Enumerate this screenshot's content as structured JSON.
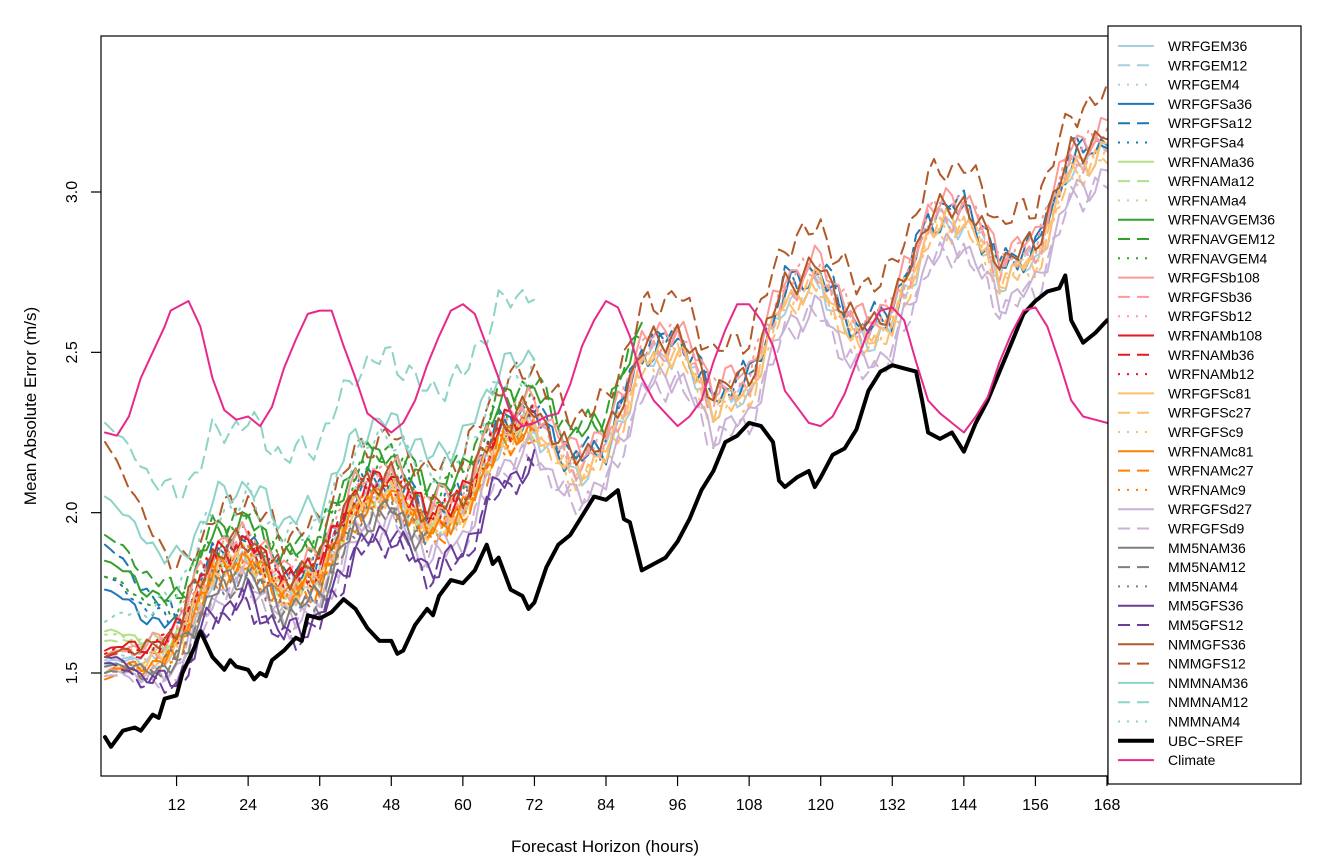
{
  "chart_data": {
    "type": "line",
    "title": "",
    "xlabel": "Forecast Horizon (hours)",
    "ylabel": "Mean Absolute Error (m/s)",
    "xlim": [
      0,
      168
    ],
    "ylim": [
      1.2,
      3.45
    ],
    "xticks": [
      12,
      24,
      36,
      48,
      60,
      72,
      84,
      96,
      108,
      120,
      132,
      144,
      156,
      168
    ],
    "yticks": [
      1.5,
      2.0,
      2.5,
      3.0
    ],
    "ytick_labels": [
      "1.5",
      "2.0",
      "2.5",
      "3.0"
    ],
    "legend_position": "right, outside plot",
    "anchor_x": [
      0,
      6,
      12,
      15,
      18,
      24,
      30,
      36,
      42,
      48,
      54,
      60,
      66,
      72,
      78,
      84,
      90,
      96,
      102,
      108,
      114,
      120,
      126,
      132,
      138,
      144,
      150,
      156,
      162,
      168
    ],
    "series": [
      {
        "name": "WRFGEM36",
        "color": "#a6cee3",
        "dash": "solid",
        "width": 2,
        "start": 1.53,
        "end": 168,
        "offset": 0.02
      },
      {
        "name": "WRFGEM12",
        "color": "#a6cee3",
        "dash": "dashed",
        "width": 2,
        "start": 1.52,
        "end": 168,
        "offset": 0.05
      },
      {
        "name": "WRFGEM4",
        "color": "#a6cee3",
        "dash": "dotted",
        "width": 2,
        "start": 1.54,
        "end": 72,
        "offset": 0.03
      },
      {
        "name": "WRFGFSa36",
        "color": "#1f78b4",
        "dash": "solid",
        "width": 2,
        "start": 1.76,
        "end": 168,
        "offset": 0.06
      },
      {
        "name": "WRFGFSa12",
        "color": "#1f78b4",
        "dash": "dashed",
        "width": 2,
        "start": 1.9,
        "end": 168,
        "offset": 0.08
      },
      {
        "name": "WRFGFSa4",
        "color": "#1f78b4",
        "dash": "dotted",
        "width": 2,
        "start": 1.8,
        "end": 72,
        "offset": 0.07
      },
      {
        "name": "WRFNAMa36",
        "color": "#b2df8a",
        "dash": "solid",
        "width": 2,
        "start": 1.63,
        "end": 72,
        "offset": 0.04
      },
      {
        "name": "WRFNAMa12",
        "color": "#b2df8a",
        "dash": "dashed",
        "width": 2,
        "start": 1.6,
        "end": 72,
        "offset": 0.03
      },
      {
        "name": "WRFNAMa4",
        "color": "#b2df8a",
        "dash": "dotted",
        "width": 2,
        "start": 1.62,
        "end": 72,
        "offset": 0.02
      },
      {
        "name": "WRFNAVGEM36",
        "color": "#33a02c",
        "dash": "solid",
        "width": 2,
        "start": 1.85,
        "end": 90,
        "offset": 0.14
      },
      {
        "name": "WRFNAVGEM12",
        "color": "#33a02c",
        "dash": "dashed",
        "width": 2,
        "start": 1.93,
        "end": 90,
        "offset": 0.16
      },
      {
        "name": "WRFNAVGEM4",
        "color": "#33a02c",
        "dash": "dotted",
        "width": 2,
        "start": 1.8,
        "end": 72,
        "offset": 0.12
      },
      {
        "name": "WRFGFSb108",
        "color": "#fb9a99",
        "dash": "solid",
        "width": 2,
        "start": 1.55,
        "end": 168,
        "offset": 0.1
      },
      {
        "name": "WRFGFSb36",
        "color": "#fb9a99",
        "dash": "dashed",
        "width": 2,
        "start": 1.55,
        "end": 168,
        "offset": 0.05
      },
      {
        "name": "WRFGFSb12",
        "color": "#fb9a99",
        "dash": "dotted",
        "width": 2,
        "start": 1.55,
        "end": 168,
        "offset": 0.08
      },
      {
        "name": "WRFNAMb108",
        "color": "#e31a1c",
        "dash": "solid",
        "width": 2,
        "start": 1.57,
        "end": 72,
        "offset": 0.07
      },
      {
        "name": "WRFNAMb36",
        "color": "#e31a1c",
        "dash": "dashed",
        "width": 2,
        "start": 1.55,
        "end": 72,
        "offset": 0.05
      },
      {
        "name": "WRFNAMb12",
        "color": "#e31a1c",
        "dash": "dotted",
        "width": 2,
        "start": 1.56,
        "end": 72,
        "offset": 0.06
      },
      {
        "name": "WRFGFSc81",
        "color": "#fdbf6f",
        "dash": "solid",
        "width": 2,
        "start": 1.5,
        "end": 168,
        "offset": 0.03
      },
      {
        "name": "WRFGFSc27",
        "color": "#fdbf6f",
        "dash": "dashed",
        "width": 2,
        "start": 1.5,
        "end": 168,
        "offset": 0.01
      },
      {
        "name": "WRFGFSc9",
        "color": "#fdbf6f",
        "dash": "dotted",
        "width": 2,
        "start": 1.49,
        "end": 168,
        "offset": 0.02
      },
      {
        "name": "WRFNAMc81",
        "color": "#ff7f00",
        "dash": "solid",
        "width": 2,
        "start": 1.5,
        "end": 72,
        "offset": 0.02
      },
      {
        "name": "WRFNAMc27",
        "color": "#ff7f00",
        "dash": "dashed",
        "width": 2,
        "start": 1.48,
        "end": 72,
        "offset": 0.0
      },
      {
        "name": "WRFNAMc9",
        "color": "#ff7f00",
        "dash": "dotted",
        "width": 2,
        "start": 1.5,
        "end": 72,
        "offset": 0.01
      },
      {
        "name": "WRFGFSd27",
        "color": "#cab2d6",
        "dash": "solid",
        "width": 2,
        "start": 1.5,
        "end": 168,
        "offset": -0.05
      },
      {
        "name": "WRFGFSd9",
        "color": "#cab2d6",
        "dash": "dashed",
        "width": 2,
        "start": 1.49,
        "end": 168,
        "offset": -0.07
      },
      {
        "name": "MM5NAM36",
        "color": "#7f7f7f",
        "dash": "solid",
        "width": 2,
        "start": 1.52,
        "end": 54,
        "offset": -0.03
      },
      {
        "name": "MM5NAM12",
        "color": "#7f7f7f",
        "dash": "dashed",
        "width": 2,
        "start": 1.5,
        "end": 54,
        "offset": -0.04
      },
      {
        "name": "MM5NAM4",
        "color": "#7f7f7f",
        "dash": "dotted",
        "width": 2,
        "start": 1.52,
        "end": 54,
        "offset": -0.02
      },
      {
        "name": "MM5GFS36",
        "color": "#6a3d9a",
        "dash": "solid",
        "width": 2,
        "start": 1.55,
        "end": 72,
        "offset": -0.1
      },
      {
        "name": "MM5GFS12",
        "color": "#6a3d9a",
        "dash": "dashed",
        "width": 2,
        "start": 1.53,
        "end": 72,
        "offset": -0.12
      },
      {
        "name": "NMMGFS36",
        "color": "#b15928",
        "dash": "solid",
        "width": 2,
        "start": 1.55,
        "end": 168,
        "offset": 0.08
      },
      {
        "name": "NMMGFS12",
        "color": "#b15928",
        "dash": "dashed",
        "width": 2,
        "start": 2.22,
        "end": 168,
        "offset": 0.2
      },
      {
        "name": "NMMNAM36",
        "color": "#8dd3c7",
        "dash": "solid",
        "width": 2,
        "start": 2.05,
        "end": 72,
        "offset": 0.25
      },
      {
        "name": "NMMNAM12",
        "color": "#8dd3c7",
        "dash": "dashed",
        "width": 2,
        "start": 2.28,
        "end": 72,
        "offset": 0.45
      },
      {
        "name": "NMMNAM4",
        "color": "#8dd3c7",
        "dash": "dotted",
        "width": 2,
        "start": 1.66,
        "end": 72,
        "offset": 0.2
      },
      {
        "name": "UBC−SREF",
        "color": "#000000",
        "dash": "solid",
        "width": 4,
        "points": [
          [
            0,
            1.3
          ],
          [
            1,
            1.27
          ],
          [
            3,
            1.32
          ],
          [
            5,
            1.33
          ],
          [
            6,
            1.32
          ],
          [
            8,
            1.37
          ],
          [
            9,
            1.36
          ],
          [
            10,
            1.42
          ],
          [
            12,
            1.43
          ],
          [
            13,
            1.5
          ],
          [
            15,
            1.58
          ],
          [
            16,
            1.63
          ],
          [
            18,
            1.55
          ],
          [
            20,
            1.51
          ],
          [
            21,
            1.54
          ],
          [
            22,
            1.52
          ],
          [
            24,
            1.51
          ],
          [
            25,
            1.48
          ],
          [
            26,
            1.5
          ],
          [
            27,
            1.49
          ],
          [
            28,
            1.54
          ],
          [
            30,
            1.57
          ],
          [
            32,
            1.61
          ],
          [
            33,
            1.6
          ],
          [
            34,
            1.68
          ],
          [
            36,
            1.67
          ],
          [
            38,
            1.69
          ],
          [
            40,
            1.73
          ],
          [
            42,
            1.7
          ],
          [
            44,
            1.64
          ],
          [
            46,
            1.6
          ],
          [
            48,
            1.6
          ],
          [
            49,
            1.56
          ],
          [
            50,
            1.57
          ],
          [
            52,
            1.65
          ],
          [
            54,
            1.7
          ],
          [
            55,
            1.68
          ],
          [
            56,
            1.74
          ],
          [
            58,
            1.79
          ],
          [
            60,
            1.78
          ],
          [
            62,
            1.82
          ],
          [
            64,
            1.9
          ],
          [
            65,
            1.84
          ],
          [
            66,
            1.86
          ],
          [
            68,
            1.76
          ],
          [
            70,
            1.74
          ],
          [
            71,
            1.7
          ],
          [
            72,
            1.72
          ],
          [
            74,
            1.83
          ],
          [
            76,
            1.9
          ],
          [
            78,
            1.93
          ],
          [
            80,
            1.99
          ],
          [
            82,
            2.05
          ],
          [
            84,
            2.04
          ],
          [
            86,
            2.07
          ],
          [
            87,
            1.98
          ],
          [
            88,
            1.97
          ],
          [
            90,
            1.82
          ],
          [
            92,
            1.84
          ],
          [
            94,
            1.86
          ],
          [
            96,
            1.91
          ],
          [
            98,
            1.98
          ],
          [
            100,
            2.07
          ],
          [
            102,
            2.13
          ],
          [
            104,
            2.22
          ],
          [
            106,
            2.24
          ],
          [
            108,
            2.28
          ],
          [
            110,
            2.27
          ],
          [
            112,
            2.22
          ],
          [
            113,
            2.1
          ],
          [
            114,
            2.08
          ],
          [
            116,
            2.11
          ],
          [
            118,
            2.13
          ],
          [
            119,
            2.08
          ],
          [
            120,
            2.11
          ],
          [
            122,
            2.18
          ],
          [
            124,
            2.2
          ],
          [
            126,
            2.26
          ],
          [
            128,
            2.38
          ],
          [
            130,
            2.44
          ],
          [
            132,
            2.46
          ],
          [
            134,
            2.45
          ],
          [
            136,
            2.44
          ],
          [
            137,
            2.35
          ],
          [
            138,
            2.25
          ],
          [
            140,
            2.23
          ],
          [
            142,
            2.25
          ],
          [
            144,
            2.19
          ],
          [
            146,
            2.28
          ],
          [
            148,
            2.35
          ],
          [
            150,
            2.44
          ],
          [
            152,
            2.53
          ],
          [
            154,
            2.62
          ],
          [
            156,
            2.66
          ],
          [
            158,
            2.69
          ],
          [
            160,
            2.7
          ],
          [
            161,
            2.74
          ],
          [
            162,
            2.6
          ],
          [
            164,
            2.53
          ],
          [
            166,
            2.56
          ],
          [
            168,
            2.6
          ]
        ]
      },
      {
        "name": "Climate",
        "color": "#e7298a",
        "dash": "solid",
        "width": 2,
        "points": [
          [
            0,
            2.25
          ],
          [
            2,
            2.24
          ],
          [
            4,
            2.3
          ],
          [
            6,
            2.42
          ],
          [
            8,
            2.5
          ],
          [
            10,
            2.58
          ],
          [
            11,
            2.63
          ],
          [
            12,
            2.64
          ],
          [
            14,
            2.66
          ],
          [
            16,
            2.58
          ],
          [
            18,
            2.42
          ],
          [
            20,
            2.32
          ],
          [
            22,
            2.29
          ],
          [
            24,
            2.3
          ],
          [
            26,
            2.27
          ],
          [
            28,
            2.33
          ],
          [
            30,
            2.45
          ],
          [
            32,
            2.54
          ],
          [
            34,
            2.62
          ],
          [
            36,
            2.63
          ],
          [
            38,
            2.63
          ],
          [
            40,
            2.52
          ],
          [
            42,
            2.42
          ],
          [
            44,
            2.31
          ],
          [
            46,
            2.28
          ],
          [
            48,
            2.25
          ],
          [
            50,
            2.28
          ],
          [
            52,
            2.35
          ],
          [
            54,
            2.46
          ],
          [
            56,
            2.55
          ],
          [
            58,
            2.63
          ],
          [
            60,
            2.65
          ],
          [
            62,
            2.62
          ],
          [
            64,
            2.52
          ],
          [
            66,
            2.42
          ],
          [
            68,
            2.31
          ],
          [
            70,
            2.27
          ],
          [
            72,
            2.28
          ],
          [
            74,
            2.3
          ],
          [
            76,
            2.31
          ],
          [
            78,
            2.4
          ],
          [
            80,
            2.52
          ],
          [
            82,
            2.6
          ],
          [
            84,
            2.66
          ],
          [
            86,
            2.64
          ],
          [
            88,
            2.55
          ],
          [
            90,
            2.42
          ],
          [
            92,
            2.35
          ],
          [
            94,
            2.31
          ],
          [
            96,
            2.27
          ],
          [
            98,
            2.3
          ],
          [
            100,
            2.35
          ],
          [
            102,
            2.47
          ],
          [
            104,
            2.57
          ],
          [
            106,
            2.65
          ],
          [
            108,
            2.65
          ],
          [
            110,
            2.6
          ],
          [
            112,
            2.52
          ],
          [
            114,
            2.38
          ],
          [
            116,
            2.33
          ],
          [
            118,
            2.28
          ],
          [
            120,
            2.27
          ],
          [
            122,
            2.3
          ],
          [
            124,
            2.37
          ],
          [
            126,
            2.47
          ],
          [
            128,
            2.57
          ],
          [
            130,
            2.63
          ],
          [
            132,
            2.64
          ],
          [
            134,
            2.6
          ],
          [
            136,
            2.47
          ],
          [
            138,
            2.35
          ],
          [
            140,
            2.31
          ],
          [
            142,
            2.28
          ],
          [
            144,
            2.25
          ],
          [
            146,
            2.3
          ],
          [
            148,
            2.36
          ],
          [
            150,
            2.47
          ],
          [
            152,
            2.56
          ],
          [
            154,
            2.63
          ],
          [
            156,
            2.64
          ],
          [
            158,
            2.58
          ],
          [
            160,
            2.47
          ],
          [
            162,
            2.35
          ],
          [
            164,
            2.3
          ],
          [
            166,
            2.29
          ],
          [
            168,
            2.28
          ]
        ]
      }
    ]
  }
}
